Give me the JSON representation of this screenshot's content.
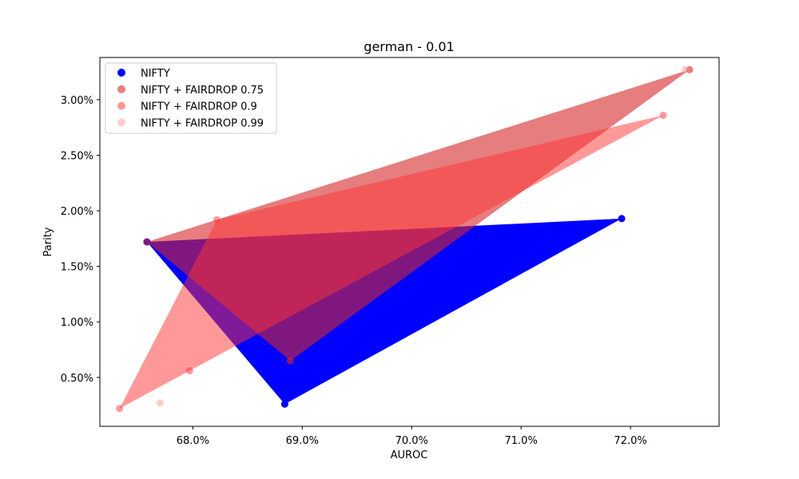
{
  "chart_data": {
    "type": "scatter",
    "title": "german - 0.01",
    "xlabel": "AUROC",
    "ylabel": "Parity",
    "xlim": [
      0.6715,
      0.7281
    ],
    "ylim": [
      0.0006,
      0.0338
    ],
    "xticks": [
      {
        "value": 0.68,
        "label": "68.0%"
      },
      {
        "value": 0.69,
        "label": "69.0%"
      },
      {
        "value": 0.7,
        "label": "70.0%"
      },
      {
        "value": 0.71,
        "label": "71.0%"
      },
      {
        "value": 0.72,
        "label": "72.0%"
      }
    ],
    "yticks": [
      {
        "value": 0.005,
        "label": "0.50%"
      },
      {
        "value": 0.01,
        "label": "1.00%"
      },
      {
        "value": 0.015,
        "label": "1.50%"
      },
      {
        "value": 0.02,
        "label": "2.00%"
      },
      {
        "value": 0.025,
        "label": "2.50%"
      },
      {
        "value": 0.03,
        "label": "3.00%"
      }
    ],
    "grid": false,
    "legend_position": "top-left",
    "series": [
      {
        "name": "NIFTY",
        "color": "#0000ff",
        "point_alpha": 1.0,
        "fill_alpha": 1.0,
        "points": [
          {
            "x": 0.6758,
            "y": 0.0172
          },
          {
            "x": 0.6884,
            "y": 0.0026
          },
          {
            "x": 0.7192,
            "y": 0.0193
          }
        ]
      },
      {
        "name": "NIFTY + FAIRDROP 0.75",
        "color": "#d62728",
        "point_alpha": 0.6,
        "fill_alpha": 0.6,
        "points": [
          {
            "x": 0.6758,
            "y": 0.0172
          },
          {
            "x": 0.7254,
            "y": 0.0327
          },
          {
            "x": 0.6889,
            "y": 0.0065
          }
        ]
      },
      {
        "name": "NIFTY + FAIRDROP 0.9",
        "color": "#ff3333",
        "point_alpha": 0.5,
        "fill_alpha": 0.5,
        "points": [
          {
            "x": 0.6733,
            "y": 0.0022
          },
          {
            "x": 0.6822,
            "y": 0.0192
          },
          {
            "x": 0.723,
            "y": 0.0286
          },
          {
            "x": 0.6797,
            "y": 0.0056
          }
        ]
      },
      {
        "name": "NIFTY + FAIRDROP 0.99",
        "color": "#ff9999",
        "point_alpha": 0.5,
        "fill_alpha": 0.4,
        "points": [
          {
            "x": 0.677,
            "y": 0.0027
          },
          {
            "x": 0.725,
            "y": 0.0327
          }
        ]
      }
    ]
  }
}
